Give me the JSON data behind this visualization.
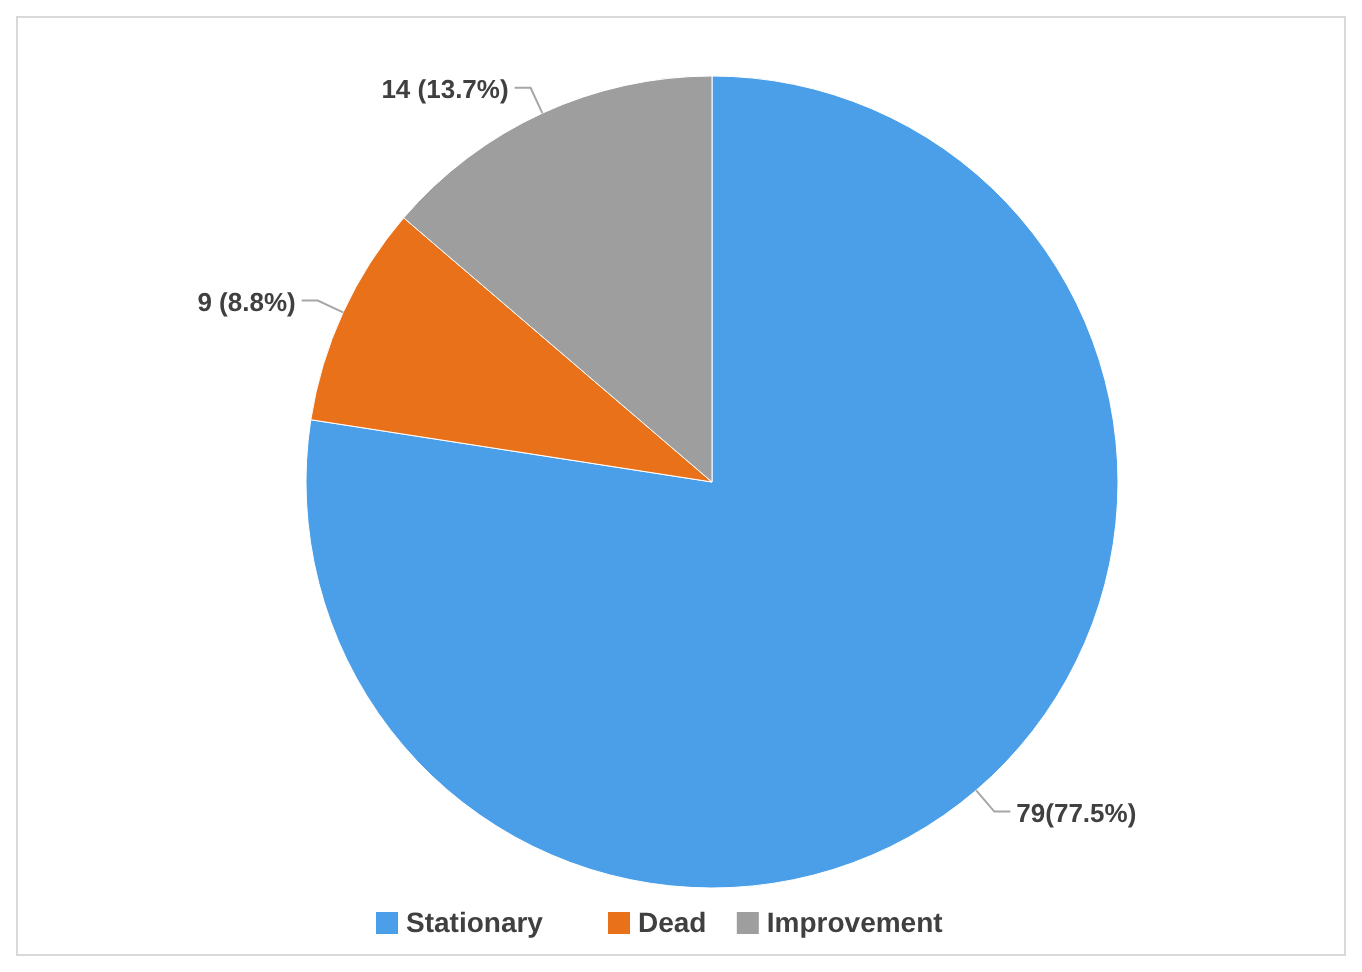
{
  "chart_data": {
    "type": "pie",
    "categories": [
      "Stationary",
      "Dead",
      "Improvement"
    ],
    "values": [
      79,
      9,
      14
    ],
    "colors": [
      "#4a9fe8",
      "#e8711a",
      "#9e9e9e"
    ],
    "value_labels": [
      "79(77.5%)",
      "9 (8.8%)",
      "14 (13.7%)"
    ],
    "legend": "bottom"
  }
}
